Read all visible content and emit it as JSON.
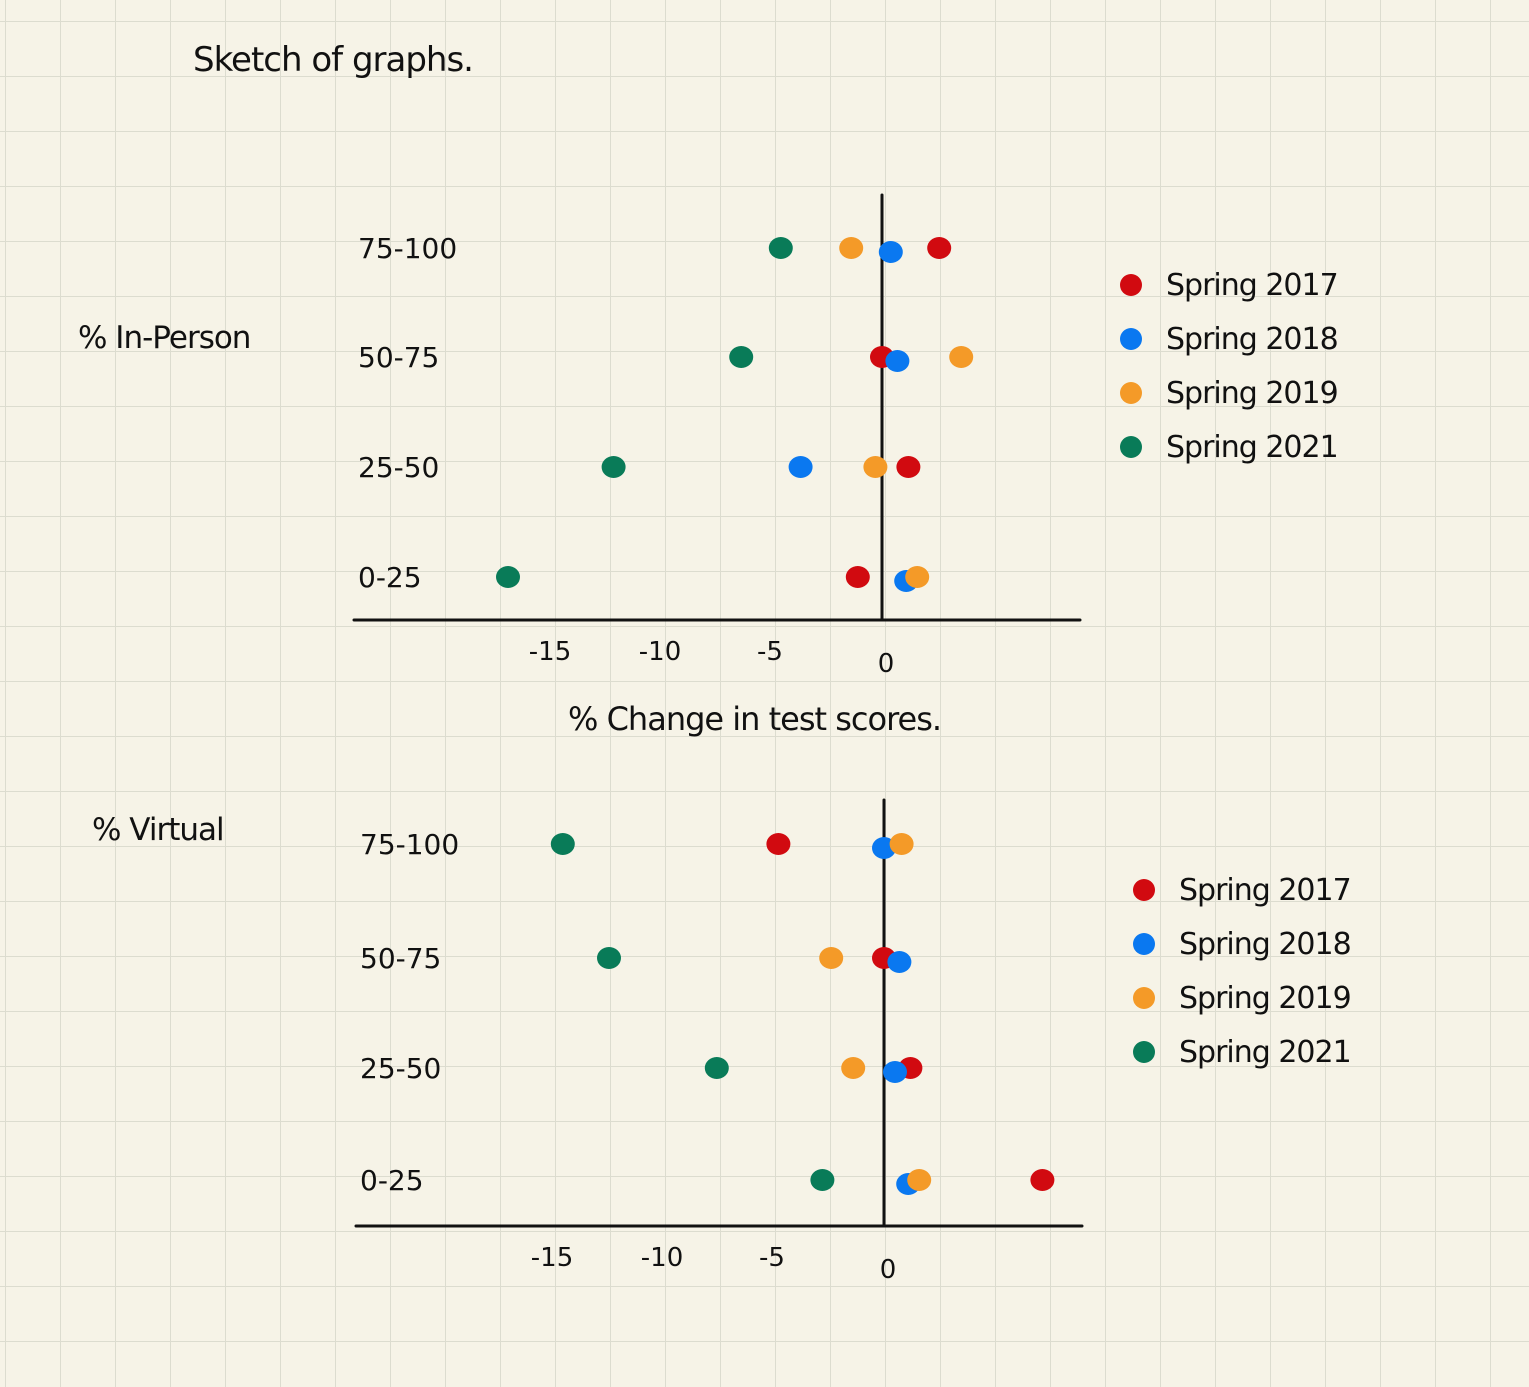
{
  "page_title": "Sketch of graphs.",
  "x_axis_title": "% Change in test scores.",
  "colors": {
    "Spring 2017": "#d10a10",
    "Spring 2018": "#0a78f0",
    "Spring 2019": "#f49a28",
    "Spring 2021": "#097b58",
    "axis": "#111111"
  },
  "chart_data": [
    {
      "type": "scatter",
      "ylabel": "% In-Person",
      "xlabel": "% Change in test scores.",
      "categories": [
        "75-100",
        "50-75",
        "25-50",
        "0-25"
      ],
      "xticks": [
        -15,
        -10,
        -5,
        0
      ],
      "xlim": [
        -24,
        9
      ],
      "legend": "right",
      "series": [
        {
          "name": "Spring 2017",
          "values": [
            2.6,
            0,
            1.2,
            -1.1
          ]
        },
        {
          "name": "Spring 2018",
          "values": [
            0.4,
            0.7,
            -3.7,
            1.1
          ]
        },
        {
          "name": "Spring 2019",
          "values": [
            -1.4,
            3.6,
            -0.3,
            1.6
          ]
        },
        {
          "name": "Spring 2021",
          "values": [
            -4.6,
            -6.4,
            -12.2,
            -17.0
          ]
        }
      ]
    },
    {
      "type": "scatter",
      "ylabel": "% Virtual",
      "xlabel": "",
      "categories": [
        "75-100",
        "50-75",
        "25-50",
        "0-25"
      ],
      "xticks": [
        -15,
        -10,
        -5,
        0
      ],
      "xlim": [
        -24,
        9
      ],
      "legend": "right",
      "series": [
        {
          "name": "Spring 2017",
          "values": [
            -4.8,
            0,
            1.2,
            7.2
          ]
        },
        {
          "name": "Spring 2018",
          "values": [
            0,
            0.7,
            0.5,
            1.1
          ]
        },
        {
          "name": "Spring 2019",
          "values": [
            0.8,
            -2.4,
            -1.4,
            1.6
          ]
        },
        {
          "name": "Spring 2021",
          "values": [
            -14.6,
            -12.5,
            -7.6,
            -2.8
          ]
        }
      ]
    }
  ]
}
